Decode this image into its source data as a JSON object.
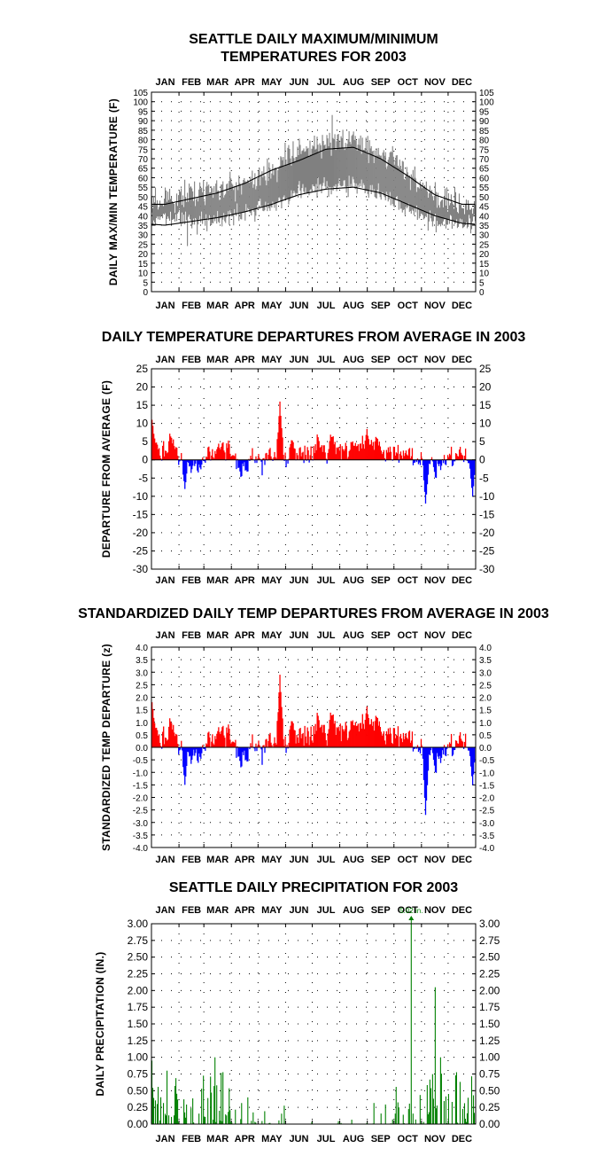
{
  "chart_data": [
    {
      "id": "maxmin",
      "type": "line",
      "title_lines": [
        "SEATTLE DAILY MAXIMUM/MINIMUM",
        "TEMPERATURES FOR 2003"
      ],
      "ylabel": "DAILY MAX/MIN TEMPERATURE (F)",
      "months": [
        "JAN",
        "FEB",
        "MAR",
        "APR",
        "MAY",
        "JUN",
        "JUL",
        "AUG",
        "SEP",
        "OCT",
        "NOV",
        "DEC"
      ],
      "ylim": [
        0,
        105
      ],
      "ytick_step": 5,
      "grid": true,
      "colors": {
        "observed": "#808080",
        "normal": "#000000"
      },
      "series": [
        {
          "key": "observed_max",
          "monthly_values": [
            48,
            52,
            54,
            57,
            64,
            74,
            79,
            80,
            74,
            62,
            49,
            46
          ],
          "range": [
            37,
            93
          ]
        },
        {
          "key": "observed_min",
          "monthly_values": [
            40,
            37,
            39,
            41,
            46,
            52,
            55,
            56,
            51,
            44,
            37,
            35
          ],
          "range": [
            24,
            60
          ]
        },
        {
          "key": "normal_max",
          "monthly_values": [
            46,
            49,
            52,
            57,
            64,
            69,
            75,
            76,
            70,
            61,
            51,
            46
          ]
        },
        {
          "key": "normal_min",
          "monthly_values": [
            35,
            37,
            39,
            42,
            46,
            51,
            54,
            55,
            52,
            46,
            40,
            36
          ]
        }
      ]
    },
    {
      "id": "departure",
      "type": "bar",
      "title_lines": [
        "DAILY TEMPERATURE DEPARTURES FROM AVERAGE IN 2003"
      ],
      "ylabel": "DEPARTURE FROM AVERAGE (F)",
      "months": [
        "JAN",
        "FEB",
        "MAR",
        "APR",
        "MAY",
        "JUN",
        "JUL",
        "AUG",
        "SEP",
        "OCT",
        "NOV",
        "DEC"
      ],
      "ylim": [
        -30,
        25
      ],
      "ytick_step": 5,
      "grid": true,
      "colors": {
        "positive": "#ff0000",
        "negative": "#0000ff"
      },
      "monthly_departure": [
        5,
        -2,
        2,
        -1,
        1,
        3,
        4,
        4,
        3,
        1,
        -3,
        1
      ],
      "peaks": [
        {
          "day": 1,
          "value": 11
        },
        {
          "day": 38,
          "value": -8
        },
        {
          "day": 145,
          "value": 16
        },
        {
          "day": 309,
          "value": -12
        },
        {
          "day": 362,
          "value": -10
        }
      ]
    },
    {
      "id": "standardized",
      "type": "bar",
      "title_lines": [
        "STANDARDIZED DAILY TEMP DEPARTURES FROM AVERAGE IN 2003"
      ],
      "ylabel": "STANDARDIZED TEMP DEPARTURE (z)",
      "months": [
        "JAN",
        "FEB",
        "MAR",
        "APR",
        "MAY",
        "JUN",
        "JUL",
        "AUG",
        "SEP",
        "OCT",
        "NOV",
        "DEC"
      ],
      "ylim": [
        -4.0,
        4.0
      ],
      "ytick_step": 0.5,
      "grid": true,
      "colors": {
        "positive": "#ff0000",
        "negative": "#0000ff"
      },
      "monthly_departure": [
        0.8,
        -0.4,
        0.4,
        -0.2,
        0.2,
        0.7,
        0.9,
        0.9,
        0.7,
        0.3,
        -0.7,
        0.2
      ],
      "peaks": [
        {
          "day": 1,
          "value": 1.8
        },
        {
          "day": 38,
          "value": -1.5
        },
        {
          "day": 145,
          "value": 2.9
        },
        {
          "day": 309,
          "value": -2.7
        },
        {
          "day": 362,
          "value": -1.5
        }
      ]
    },
    {
      "id": "precip",
      "type": "bar",
      "title_lines": [
        "SEATTLE DAILY PRECIPITATION FOR 2003"
      ],
      "ylabel": "DAILY PRECIPITATION (IN.)",
      "months": [
        "JAN",
        "FEB",
        "MAR",
        "APR",
        "MAY",
        "JUN",
        "JUL",
        "AUG",
        "SEP",
        "OCT",
        "NOV",
        "DEC"
      ],
      "ylim": [
        0.0,
        3.0
      ],
      "ytick_step": 0.25,
      "grid": true,
      "colors": {
        "bars": "#008000"
      },
      "annotation": {
        "text": "5.02 in.",
        "day": 293,
        "value": 5.02
      },
      "peaks": [
        {
          "day": 1,
          "value": 0.95
        },
        {
          "day": 72,
          "value": 1.0
        },
        {
          "day": 293,
          "value": 5.02
        },
        {
          "day": 320,
          "value": 2.05
        },
        {
          "day": 326,
          "value": 1.0
        }
      ]
    }
  ]
}
